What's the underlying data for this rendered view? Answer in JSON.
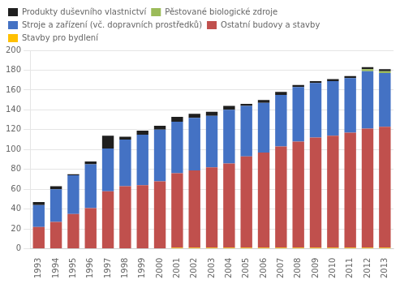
{
  "chart_data": {
    "type": "bar",
    "stacked": true,
    "categories": [
      "1993",
      "1994",
      "1995",
      "1996",
      "1997",
      "1998",
      "1999",
      "2000",
      "2001",
      "2002",
      "2003",
      "2004",
      "2005",
      "2006",
      "2007",
      "2008",
      "2009",
      "2010",
      "2011",
      "2012",
      "2013"
    ],
    "series": [
      {
        "name": "Stavby pro bydlení",
        "color": "#FFC000",
        "values": [
          0,
          0,
          0,
          0,
          0,
          0,
          0,
          0,
          1,
          1,
          1,
          1,
          1,
          1,
          1,
          1,
          1,
          1,
          1,
          1,
          1
        ]
      },
      {
        "name": "Ostatní budovy a stavby",
        "color": "#C0504D",
        "values": [
          22,
          27,
          35,
          41,
          58,
          63,
          64,
          68,
          75,
          78,
          81,
          85,
          92,
          96,
          102,
          107,
          111,
          113,
          116,
          120,
          122
        ]
      },
      {
        "name": "Stroje a zařízení (vč. dopravních prostředků)",
        "color": "#4472C4",
        "values": [
          22,
          33,
          39,
          44,
          43,
          47,
          51,
          52,
          52,
          53,
          52,
          54,
          51,
          50,
          52,
          55,
          55,
          55,
          55,
          58,
          54
        ]
      },
      {
        "name": "Pěstované biologické zdroje",
        "color": "#9BBB59",
        "values": [
          0,
          0,
          0,
          0,
          0,
          0,
          0,
          0,
          0,
          0,
          0,
          0,
          0,
          0,
          0,
          0,
          0,
          0,
          0,
          2,
          2
        ]
      },
      {
        "name": "Produkty duševního vlastnictví",
        "color": "#1F1F1F",
        "values": [
          3,
          3,
          1,
          3,
          13,
          3,
          4,
          4,
          5,
          4,
          4,
          4,
          2,
          3,
          3,
          2,
          2,
          2,
          2,
          2,
          2
        ]
      }
    ],
    "ylim": [
      0,
      200
    ],
    "yticks": [
      0,
      20,
      40,
      60,
      80,
      100,
      120,
      140,
      160,
      180,
      200
    ],
    "grid": true,
    "legend": "upper left"
  }
}
